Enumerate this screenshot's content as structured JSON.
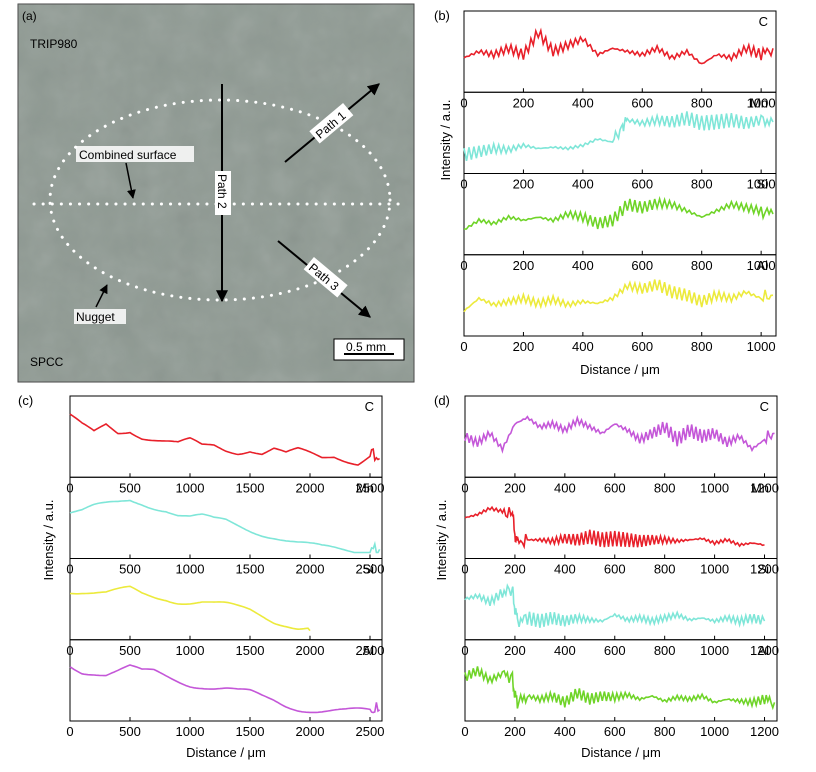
{
  "micrograph": {
    "panel_label": "(a)",
    "top_material": "TRIP980",
    "bottom_material": "SPCC",
    "combined_surface_label": "Combined surface",
    "nugget_label": "Nugget",
    "path1_label": "Path 1",
    "path2_label": "Path 2",
    "path3_label": "Path 3",
    "scale_bar_label": "0.5 mm",
    "background_color": "#8f9a93"
  },
  "chart_data": [
    {
      "panel": "(b)",
      "type": "line",
      "xlabel": "Distance / μm",
      "ylabel": "Intensity / a.u.",
      "xlim": [
        0,
        1050
      ],
      "xticks": [
        0,
        200,
        400,
        600,
        800,
        1000
      ],
      "series": [
        {
          "name": "C",
          "color": "#e8202a",
          "x": [
            0,
            50,
            100,
            150,
            200,
            250,
            300,
            350,
            400,
            450,
            500,
            550,
            600,
            650,
            700,
            750,
            800,
            850,
            900,
            950,
            1000,
            1040
          ],
          "y": [
            0.45,
            0.55,
            0.5,
            0.6,
            0.5,
            0.85,
            0.55,
            0.65,
            0.75,
            0.5,
            0.6,
            0.55,
            0.5,
            0.6,
            0.45,
            0.55,
            0.35,
            0.5,
            0.45,
            0.6,
            0.5,
            0.6
          ]
        },
        {
          "name": "Mn",
          "color": "#7fe6d8",
          "x": [
            0,
            50,
            100,
            150,
            200,
            250,
            300,
            350,
            400,
            450,
            500,
            530,
            550,
            600,
            650,
            700,
            750,
            800,
            850,
            900,
            950,
            1000,
            1040
          ],
          "y": [
            0.2,
            0.25,
            0.3,
            0.28,
            0.35,
            0.3,
            0.32,
            0.3,
            0.35,
            0.45,
            0.4,
            0.65,
            0.75,
            0.7,
            0.75,
            0.72,
            0.78,
            0.7,
            0.72,
            0.75,
            0.7,
            0.75,
            0.72
          ]
        },
        {
          "name": "Si",
          "color": "#6fd428",
          "x": [
            0,
            50,
            100,
            150,
            200,
            250,
            300,
            350,
            400,
            450,
            500,
            550,
            600,
            650,
            700,
            750,
            800,
            850,
            900,
            950,
            1000,
            1040
          ],
          "y": [
            0.3,
            0.45,
            0.4,
            0.5,
            0.45,
            0.5,
            0.45,
            0.55,
            0.5,
            0.4,
            0.45,
            0.7,
            0.65,
            0.72,
            0.7,
            0.6,
            0.5,
            0.6,
            0.7,
            0.65,
            0.6,
            0.55
          ]
        },
        {
          "name": "Al",
          "color": "#ecea3c",
          "x": [
            0,
            50,
            100,
            150,
            200,
            250,
            300,
            350,
            400,
            450,
            500,
            550,
            600,
            650,
            700,
            750,
            800,
            850,
            900,
            950,
            1000,
            1040
          ],
          "y": [
            0.3,
            0.5,
            0.4,
            0.45,
            0.5,
            0.42,
            0.48,
            0.4,
            0.45,
            0.42,
            0.5,
            0.7,
            0.65,
            0.72,
            0.6,
            0.55,
            0.45,
            0.55,
            0.5,
            0.6,
            0.5,
            0.55
          ]
        }
      ]
    },
    {
      "panel": "(c)",
      "type": "line",
      "xlabel": "Distance / μm",
      "ylabel": "Intensity / a.u.",
      "xlim": [
        0,
        2600
      ],
      "xticks": [
        0,
        500,
        1000,
        1500,
        2000,
        2500
      ],
      "series": [
        {
          "name": "C",
          "color": "#e8202a",
          "x": [
            0,
            100,
            200,
            300,
            400,
            500,
            600,
            700,
            800,
            900,
            1000,
            1100,
            1200,
            1300,
            1400,
            1500,
            1600,
            1700,
            1800,
            1900,
            2000,
            2100,
            2200,
            2300,
            2400,
            2500,
            2580
          ],
          "y": [
            0.85,
            0.7,
            0.6,
            0.75,
            0.65,
            0.7,
            0.6,
            0.55,
            0.5,
            0.45,
            0.5,
            0.42,
            0.45,
            0.4,
            0.38,
            0.42,
            0.35,
            0.4,
            0.3,
            0.35,
            0.3,
            0.25,
            0.3,
            0.25,
            0.2,
            0.3,
            0.2
          ]
        },
        {
          "name": "Mn",
          "color": "#7fe6d8",
          "x": [
            0,
            100,
            200,
            300,
            400,
            500,
            600,
            700,
            800,
            900,
            1000,
            1100,
            1200,
            1300,
            1400,
            1500,
            1600,
            1700,
            1800,
            1900,
            2000,
            2100,
            2200,
            2300,
            2400,
            2500,
            2580
          ],
          "y": [
            0.6,
            0.6,
            0.65,
            0.68,
            0.72,
            0.78,
            0.75,
            0.7,
            0.65,
            0.55,
            0.5,
            0.5,
            0.45,
            0.45,
            0.4,
            0.35,
            0.3,
            0.25,
            0.18,
            0.12,
            0.08,
            0.05,
            0.05,
            0.05,
            0.05,
            0.05,
            0.05
          ]
        },
        {
          "name": "Si",
          "color": "#ecea3c",
          "x": [
            0,
            100,
            200,
            300,
            400,
            500,
            600,
            700,
            800,
            900,
            1000,
            1100,
            1200,
            1300,
            1400,
            1500,
            1600,
            1700,
            1800,
            1900,
            2000
          ],
          "y": [
            0.75,
            0.72,
            0.68,
            0.65,
            0.68,
            0.72,
            0.65,
            0.62,
            0.6,
            0.55,
            0.52,
            0.5,
            0.45,
            0.42,
            0.38,
            0.35,
            0.28,
            0.2,
            0.15,
            0.08,
            0.05
          ]
        },
        {
          "name": "Al",
          "color": "#c457d8",
          "x": [
            0,
            100,
            200,
            300,
            400,
            500,
            600,
            700,
            800,
            900,
            1000,
            1100,
            1200,
            1300,
            1400,
            1500,
            1600,
            1700,
            1800,
            1900,
            2000,
            2100,
            2200,
            2300,
            2400,
            2500,
            2580
          ],
          "y": [
            0.8,
            0.72,
            0.7,
            0.66,
            0.7,
            0.75,
            0.68,
            0.7,
            0.65,
            0.6,
            0.55,
            0.52,
            0.48,
            0.45,
            0.4,
            0.38,
            0.32,
            0.28,
            0.22,
            0.18,
            0.15,
            0.12,
            0.1,
            0.08,
            0.08,
            0.08,
            0.08
          ]
        }
      ]
    },
    {
      "panel": "(d)",
      "type": "line",
      "xlabel": "Distance / μm",
      "ylabel": "Intensity / a.u.",
      "xlim": [
        0,
        1250
      ],
      "xticks": [
        0,
        200,
        400,
        600,
        800,
        1000,
        1200
      ],
      "series": [
        {
          "name": "C",
          "color": "#c457d8",
          "x": [
            0,
            50,
            100,
            150,
            200,
            250,
            300,
            350,
            400,
            450,
            500,
            550,
            600,
            650,
            700,
            750,
            800,
            850,
            900,
            950,
            1000,
            1050,
            1100,
            1150,
            1200,
            1240
          ],
          "y": [
            0.55,
            0.45,
            0.6,
            0.35,
            0.75,
            0.85,
            0.7,
            0.75,
            0.65,
            0.8,
            0.7,
            0.6,
            0.75,
            0.65,
            0.5,
            0.6,
            0.7,
            0.5,
            0.65,
            0.55,
            0.6,
            0.45,
            0.55,
            0.35,
            0.5,
            0.6
          ]
        },
        {
          "name": "Mn",
          "color": "#e8202a",
          "x": [
            0,
            50,
            100,
            150,
            190,
            200,
            210,
            250,
            300,
            350,
            400,
            450,
            500,
            550,
            600,
            650,
            700,
            750,
            800,
            850,
            900,
            950,
            1000,
            1050,
            1100,
            1150,
            1200
          ],
          "y": [
            0.55,
            0.6,
            0.7,
            0.65,
            0.6,
            0.3,
            0.15,
            0.2,
            0.2,
            0.18,
            0.22,
            0.2,
            0.25,
            0.2,
            0.22,
            0.2,
            0.18,
            0.2,
            0.2,
            0.18,
            0.2,
            0.22,
            0.15,
            0.2,
            0.12,
            0.15,
            0.12
          ]
        },
        {
          "name": "Si",
          "color": "#7fe6d8",
          "x": [
            0,
            50,
            100,
            150,
            190,
            200,
            210,
            250,
            300,
            350,
            400,
            450,
            500,
            550,
            600,
            650,
            700,
            750,
            800,
            850,
            900,
            950,
            1000,
            1050,
            1100,
            1150,
            1200
          ],
          "y": [
            0.55,
            0.6,
            0.5,
            0.65,
            0.7,
            0.4,
            0.2,
            0.25,
            0.2,
            0.25,
            0.2,
            0.25,
            0.22,
            0.2,
            0.3,
            0.22,
            0.25,
            0.2,
            0.25,
            0.3,
            0.22,
            0.25,
            0.2,
            0.25,
            0.2,
            0.25,
            0.2
          ]
        },
        {
          "name": "Al",
          "color": "#6fd428",
          "x": [
            0,
            50,
            100,
            150,
            190,
            200,
            210,
            250,
            300,
            350,
            400,
            450,
            500,
            550,
            600,
            650,
            700,
            750,
            800,
            850,
            900,
            950,
            1000,
            1050,
            1100,
            1150,
            1200,
            1240
          ],
          "y": [
            0.6,
            0.7,
            0.55,
            0.65,
            0.6,
            0.3,
            0.2,
            0.3,
            0.25,
            0.3,
            0.2,
            0.35,
            0.25,
            0.3,
            0.28,
            0.32,
            0.25,
            0.3,
            0.22,
            0.28,
            0.25,
            0.3,
            0.2,
            0.25,
            0.22,
            0.2,
            0.25,
            0.2
          ]
        }
      ]
    }
  ]
}
